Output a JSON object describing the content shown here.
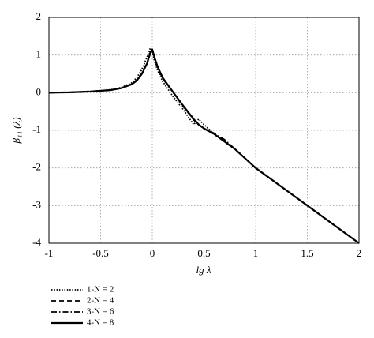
{
  "chart_data": {
    "type": "line",
    "x_label": "lg λ",
    "y_label": "β₁₁ (λ)",
    "x": [
      -1,
      -0.8,
      -0.6,
      -0.4,
      -0.3,
      -0.2,
      -0.15,
      -0.1,
      -0.05,
      -0.02,
      0,
      0.02,
      0.05,
      0.1,
      0.2,
      0.3,
      0.4,
      0.45,
      0.5,
      0.6,
      0.7,
      0.8,
      1,
      1.5,
      2
    ],
    "series": [
      {
        "name": "1-N = 2",
        "color": "#000000",
        "dash": "dotted",
        "values": [
          0,
          0.01,
          0.03,
          0.08,
          0.14,
          0.26,
          0.4,
          0.62,
          0.95,
          1.18,
          1.1,
          0.85,
          0.6,
          0.3,
          -0.1,
          -0.45,
          -0.85,
          -0.7,
          -0.85,
          -1.1,
          -1.3,
          -1.5,
          -2,
          -3,
          -4
        ]
      },
      {
        "name": "2-N = 4",
        "color": "#000000",
        "dash": "dashed",
        "values": [
          0,
          0.01,
          0.03,
          0.07,
          0.12,
          0.23,
          0.34,
          0.52,
          0.8,
          1.08,
          1.15,
          0.93,
          0.68,
          0.38,
          0.01,
          -0.37,
          -0.72,
          -0.86,
          -0.96,
          -1.1,
          -1.3,
          -1.5,
          -2,
          -3,
          -4
        ]
      },
      {
        "name": "3-N = 6",
        "color": "#000000",
        "dash": "dashdot",
        "values": [
          0,
          0.01,
          0.03,
          0.07,
          0.12,
          0.22,
          0.33,
          0.51,
          0.79,
          1.06,
          1.15,
          0.94,
          0.69,
          0.39,
          0.02,
          -0.36,
          -0.71,
          -0.85,
          -0.95,
          -1.08,
          -1.25,
          -1.5,
          -2,
          -3,
          -4
        ]
      },
      {
        "name": "4-N = 8",
        "color": "#000000",
        "dash": "solid",
        "values": [
          0,
          0.01,
          0.03,
          0.07,
          0.12,
          0.22,
          0.32,
          0.5,
          0.78,
          1.05,
          1.15,
          0.95,
          0.7,
          0.4,
          0.02,
          -0.35,
          -0.7,
          -0.85,
          -0.95,
          -1.1,
          -1.3,
          -1.5,
          -2,
          -3,
          -4
        ]
      }
    ],
    "xlim": [
      -1,
      2
    ],
    "xticks": [
      -1,
      -0.5,
      0,
      0.5,
      1,
      1.5,
      2
    ],
    "ylim": [
      -4,
      2
    ],
    "yticks": [
      -4,
      -3,
      -2,
      -1,
      0,
      1,
      2
    ],
    "grid": true,
    "legend": "below-left"
  }
}
